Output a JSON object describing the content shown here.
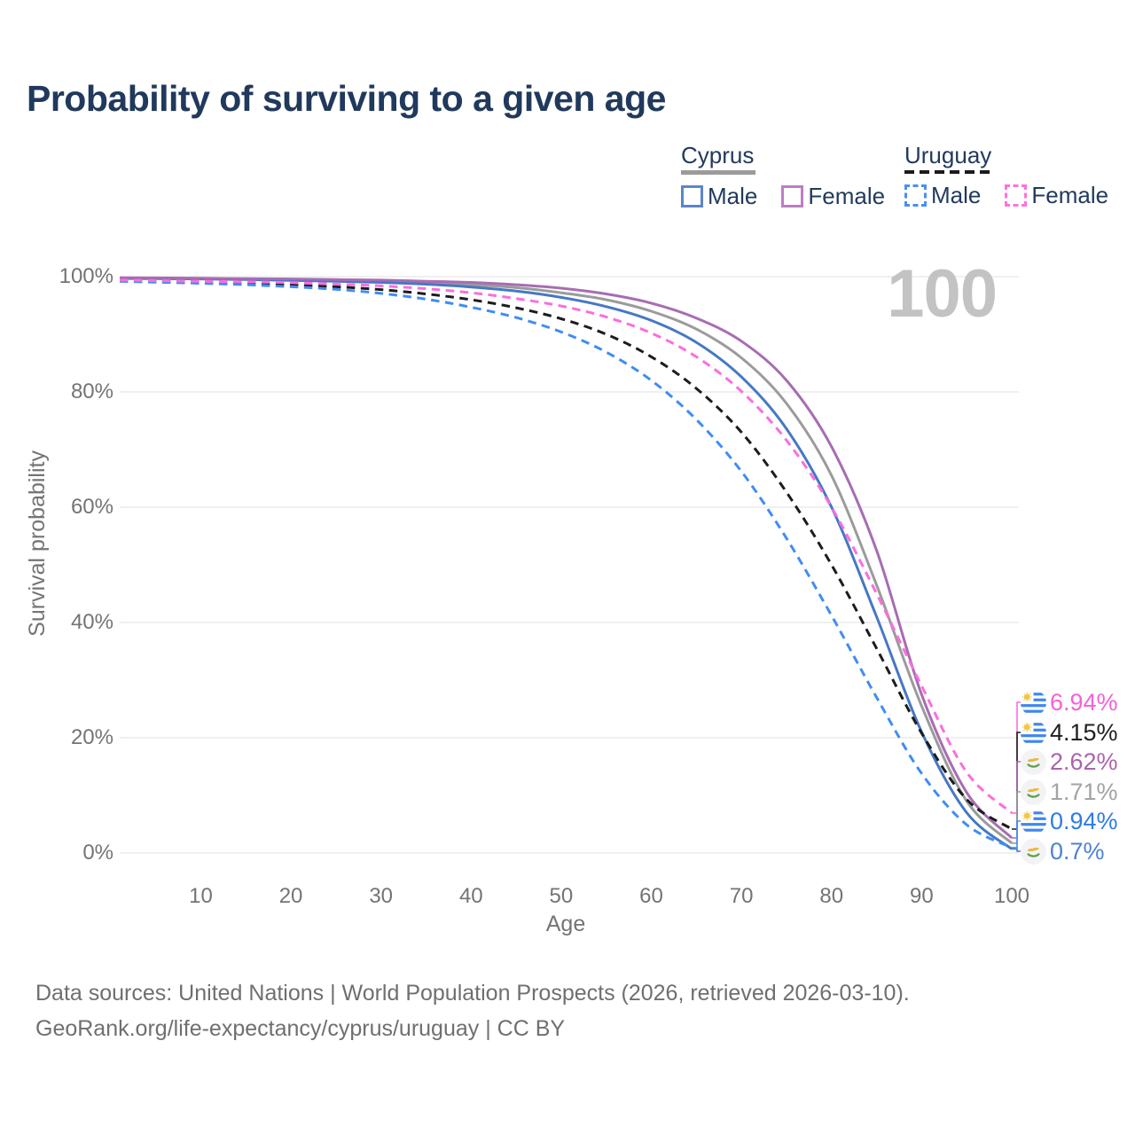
{
  "header": {
    "title": "Probability of surviving to a given age"
  },
  "legend": {
    "groups": [
      {
        "label": "Cyprus",
        "line_style": "solid",
        "line_color": "#9b9b9b",
        "items": [
          {
            "label": "Male",
            "color": "#5b85c9",
            "dashed": false
          },
          {
            "label": "Female",
            "color": "#bc7ec4",
            "dashed": false
          }
        ]
      },
      {
        "label": "Uruguay",
        "line_style": "dashed",
        "line_color": "#1b1b1b",
        "items": [
          {
            "label": "Male",
            "color": "#4b8ef2",
            "dashed": true
          },
          {
            "label": "Female",
            "color": "#fb73df",
            "dashed": true
          }
        ]
      }
    ]
  },
  "chart_data": {
    "type": "line",
    "title": "Probability of surviving to a given age",
    "xlabel": "Age",
    "ylabel": "Survival probability",
    "xlim": [
      1,
      100
    ],
    "ylim": [
      0,
      100
    ],
    "grid": "horizontal",
    "legend_position": "top-right",
    "watermark": "100",
    "x_ticks": [
      10,
      20,
      30,
      40,
      50,
      60,
      70,
      80,
      90,
      100
    ],
    "y_ticks": [
      {
        "value": 100,
        "label": "100%"
      },
      {
        "value": 80,
        "label": "80%"
      },
      {
        "value": 60,
        "label": "60%"
      },
      {
        "value": 40,
        "label": "40%"
      },
      {
        "value": 20,
        "label": "20%"
      },
      {
        "value": 0,
        "label": "0%"
      }
    ],
    "ages": [
      1,
      5,
      10,
      15,
      20,
      25,
      30,
      35,
      40,
      45,
      50,
      55,
      60,
      65,
      70,
      75,
      80,
      85,
      90,
      95,
      100
    ],
    "series": [
      {
        "id": "cyprus_all",
        "name": "Cyprus (both sexes)",
        "color": "#9b9b9b",
        "dashed": false,
        "values": [
          99.75,
          99.7,
          99.65,
          99.55,
          99.45,
          99.35,
          99.2,
          98.95,
          98.6,
          98.1,
          97.2,
          96.0,
          94.0,
          90.9,
          85.9,
          78.0,
          65.5,
          46.5,
          25.5,
          9.0,
          1.71
        ]
      },
      {
        "id": "cyprus_male",
        "name": "Cyprus Male",
        "color": "#4678c3",
        "dashed": false,
        "values": [
          99.7,
          99.65,
          99.6,
          99.5,
          99.35,
          99.2,
          99.0,
          98.7,
          98.2,
          97.5,
          96.4,
          94.8,
          92.4,
          88.6,
          82.6,
          73.6,
          60.0,
          41.0,
          21.0,
          7.0,
          0.7
        ]
      },
      {
        "id": "cyprus_female",
        "name": "Cyprus Female",
        "color": "#a86cb3",
        "dashed": false,
        "values": [
          99.8,
          99.78,
          99.72,
          99.65,
          99.6,
          99.5,
          99.4,
          99.2,
          99.0,
          98.6,
          98.0,
          97.0,
          95.4,
          92.8,
          88.8,
          82.0,
          70.5,
          52.5,
          27.5,
          10.5,
          2.62
        ]
      },
      {
        "id": "uruguay_all",
        "name": "Uruguay (both sexes)",
        "color": "#1c1c1c",
        "dashed": true,
        "values": [
          99.3,
          99.2,
          99.05,
          98.85,
          98.6,
          98.25,
          97.75,
          97.0,
          96.0,
          94.6,
          92.7,
          90.0,
          86.1,
          80.6,
          73.0,
          62.6,
          50.0,
          35.5,
          20.8,
          9.3,
          4.15
        ]
      },
      {
        "id": "uruguay_male",
        "name": "Uruguay Male",
        "color": "#3f8df2",
        "dashed": true,
        "values": [
          99.2,
          99.05,
          98.85,
          98.6,
          98.25,
          97.8,
          97.1,
          96.1,
          94.7,
          92.9,
          90.4,
          86.9,
          82.0,
          75.2,
          66.2,
          54.6,
          41.2,
          27.0,
          13.8,
          4.9,
          0.94
        ]
      },
      {
        "id": "uruguay_female",
        "name": "Uruguay Female",
        "color": "#fb6edd",
        "dashed": true,
        "values": [
          99.4,
          99.3,
          99.2,
          99.1,
          98.95,
          98.7,
          98.4,
          97.9,
          97.2,
          96.2,
          94.9,
          93.0,
          90.2,
          86.1,
          80.1,
          71.6,
          60.0,
          45.0,
          29.0,
          14.0,
          6.94
        ]
      }
    ]
  },
  "end_labels": [
    {
      "series": "uruguay_female",
      "text": "6.94%",
      "flag": "uruguay",
      "text_color": "#f761d5"
    },
    {
      "series": "uruguay_all",
      "text": "4.15%",
      "flag": "uruguay",
      "text_color": "#202020"
    },
    {
      "series": "cyprus_female",
      "text": "2.62%",
      "flag": "cyprus",
      "text_color": "#ab63ac"
    },
    {
      "series": "cyprus_all",
      "text": "1.71%",
      "flag": "cyprus",
      "text_color": "#a3a3a3"
    },
    {
      "series": "uruguay_male",
      "text": "0.94%",
      "flag": "uruguay",
      "text_color": "#2e7ce4"
    },
    {
      "series": "cyprus_male",
      "text": "0.7%",
      "flag": "cyprus",
      "text_color": "#4c82d0"
    }
  ],
  "footer": {
    "line1": "Data sources: United Nations | World Population Prospects (2026, retrieved 2026-03-10).",
    "line2": "GeoRank.org/life-expectancy/cyprus/uruguay | CC BY"
  }
}
